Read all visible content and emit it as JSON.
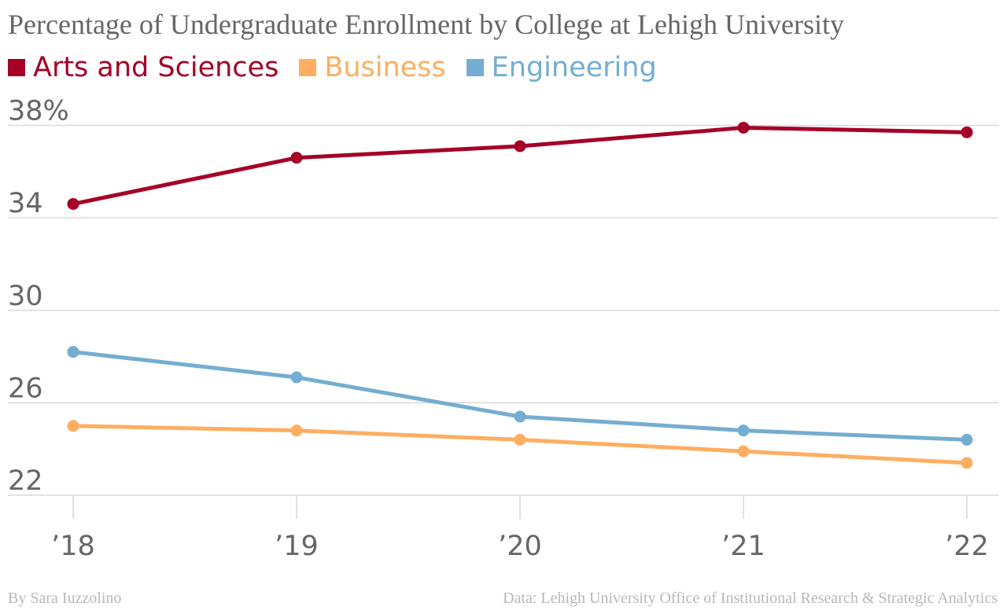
{
  "chart_data": {
    "type": "line",
    "title": "Percentage of Undergraduate Enrollment by College at Lehigh University",
    "categories": [
      "’18",
      "’19",
      "’20",
      "’21",
      "’22"
    ],
    "y_ticks": [
      "22",
      "26",
      "30",
      "34",
      "38%"
    ],
    "ylim": [
      22,
      38
    ],
    "grid": true,
    "legend_position": "top-left",
    "series": [
      {
        "name": "Arts and Sciences",
        "color": "#a50026",
        "values": [
          34.6,
          36.6,
          37.1,
          37.9,
          37.7
        ]
      },
      {
        "name": "Business",
        "color": "#fdae61",
        "values": [
          25.0,
          24.8,
          24.4,
          23.9,
          23.4
        ]
      },
      {
        "name": "Engineering",
        "color": "#74add1",
        "values": [
          28.2,
          27.1,
          25.4,
          24.8,
          24.4
        ]
      }
    ]
  },
  "footer": {
    "byline": "By Sara Iuzzolino",
    "source": "Data: Lehigh University Office of Institutional Research & Strategic Analytics"
  }
}
